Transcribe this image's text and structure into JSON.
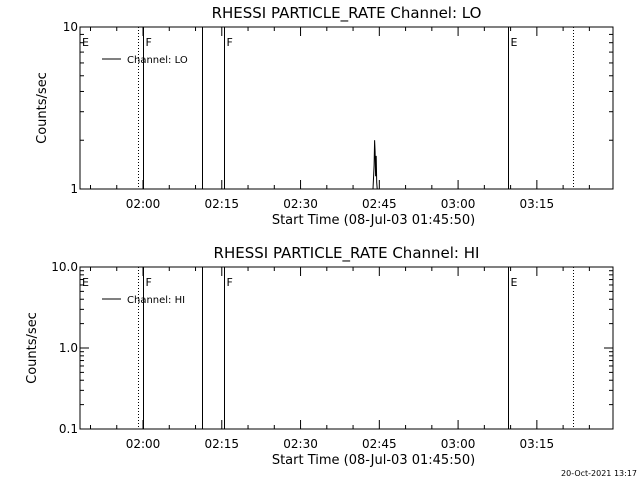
{
  "timestamp": "20-Oct-2021 13:17",
  "chart_data": [
    {
      "type": "line",
      "title": "RHESSI PARTICLE_RATE Channel: LO",
      "xlabel": "Start Time (08-Jul-03 01:45:50)",
      "ylabel": "Counts/sec",
      "yscale": "log",
      "ylim": [
        1,
        10
      ],
      "yticks": [
        {
          "value": 1,
          "label": "1"
        },
        {
          "value": 10,
          "label": "10"
        }
      ],
      "xlim": [
        "01:48:00",
        "03:29:30"
      ],
      "xticks": [
        {
          "value": "02:00",
          "label": "02:00"
        },
        {
          "value": "02:15",
          "label": "02:15"
        },
        {
          "value": "02:30",
          "label": "02:30"
        },
        {
          "value": "02:45",
          "label": "02:45"
        },
        {
          "value": "03:00",
          "label": "03:00"
        },
        {
          "value": "03:15",
          "label": "03:15"
        }
      ],
      "legend": {
        "position": "top-left",
        "entries": [
          "Channel: LO"
        ]
      },
      "series": [
        {
          "name": "Channel: LO",
          "x": [
            "02:43:48",
            "02:44:00",
            "02:44:06",
            "02:44:12",
            "02:44:18",
            "02:44:24",
            "02:44:30",
            "02:44:36",
            "02:44:42",
            "02:44:48"
          ],
          "y": [
            1,
            1.4,
            2.0,
            1.7,
            1.2,
            1.6,
            1.1,
            1,
            1,
            1
          ]
        }
      ],
      "markers": [
        {
          "time": "01:59:00",
          "style": "dotted",
          "label": ""
        },
        {
          "time": "02:00:00",
          "style": "solid",
          "label": "F"
        },
        {
          "time": "02:11:10",
          "style": "solid",
          "label": ""
        },
        {
          "time": "02:15:30",
          "style": "solid",
          "label": "F"
        },
        {
          "time": "03:09:30",
          "style": "solid",
          "label": "E"
        },
        {
          "time": "03:21:50",
          "style": "dotted",
          "label": ""
        }
      ],
      "edge_flag": "E"
    },
    {
      "type": "line",
      "title": "RHESSI PARTICLE_RATE Channel: HI",
      "xlabel": "Start Time (08-Jul-03 01:45:50)",
      "ylabel": "Counts/sec",
      "yscale": "log",
      "ylim": [
        0.1,
        10
      ],
      "yticks": [
        {
          "value": 0.1,
          "label": "0.1"
        },
        {
          "value": 1,
          "label": "1.0"
        },
        {
          "value": 10,
          "label": "10.0"
        }
      ],
      "xlim": [
        "01:48:00",
        "03:29:30"
      ],
      "xticks": [
        {
          "value": "02:00",
          "label": "02:00"
        },
        {
          "value": "02:15",
          "label": "02:15"
        },
        {
          "value": "02:30",
          "label": "02:30"
        },
        {
          "value": "02:45",
          "label": "02:45"
        },
        {
          "value": "03:00",
          "label": "03:00"
        },
        {
          "value": "03:15",
          "label": "03:15"
        }
      ],
      "legend": {
        "position": "top-left",
        "entries": [
          "Channel: HI"
        ]
      },
      "series": [
        {
          "name": "Channel: HI",
          "x": [],
          "y": []
        }
      ],
      "markers": [
        {
          "time": "01:59:00",
          "style": "dotted",
          "label": ""
        },
        {
          "time": "02:00:00",
          "style": "solid",
          "label": "F"
        },
        {
          "time": "02:11:10",
          "style": "solid",
          "label": ""
        },
        {
          "time": "02:15:30",
          "style": "solid",
          "label": "F"
        },
        {
          "time": "03:09:30",
          "style": "solid",
          "label": "E"
        },
        {
          "time": "03:21:50",
          "style": "dotted",
          "label": ""
        }
      ],
      "edge_flag": "E"
    }
  ]
}
